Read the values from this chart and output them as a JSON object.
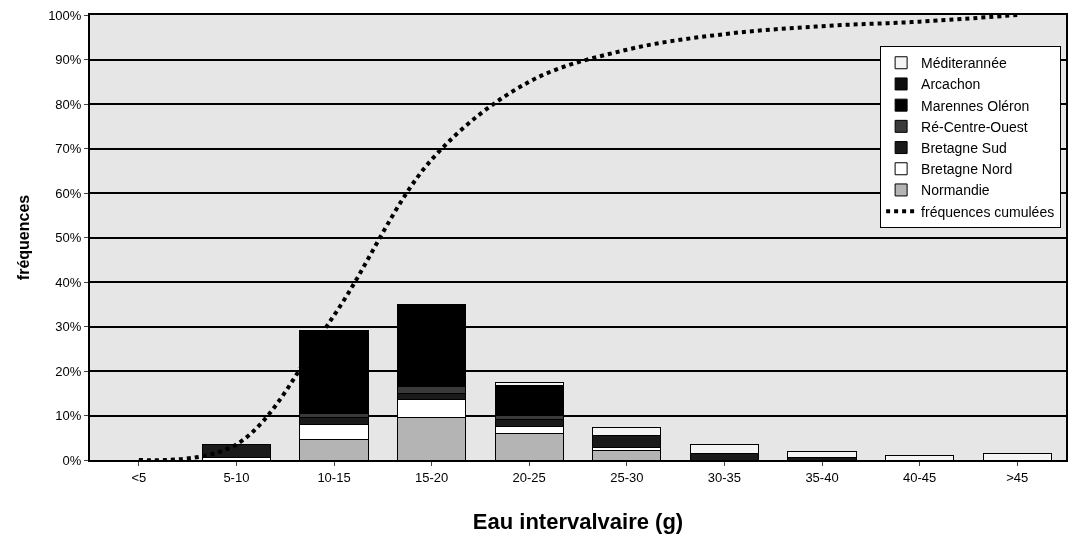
{
  "chart_data": {
    "type": "bar",
    "stacked": true,
    "xlabel": "Eau intervalvaire (g)",
    "ylabel": "fréquences",
    "categories": [
      "<5",
      "5-10",
      "10-15",
      "15-20",
      "20-25",
      "25-30",
      "30-35",
      "35-40",
      "40-45",
      ">45"
    ],
    "series": [
      {
        "name": "Normandie",
        "color": "#b4b4b4",
        "values": [
          0,
          0,
          4.5,
          9.5,
          6,
          2.2,
          0,
          0,
          0,
          0
        ]
      },
      {
        "name": "Bretagne Nord",
        "color": "#ffffff",
        "values": [
          0,
          0.5,
          3.5,
          4,
          1.5,
          0.6,
          0,
          0,
          0,
          0
        ]
      },
      {
        "name": "Bretagne Sud",
        "color": "#1a1a1a",
        "values": [
          0,
          3,
          1.5,
          1.5,
          1.5,
          2.7,
          1.5,
          0.5,
          0,
          0
        ]
      },
      {
        "name": "Ré-Centre-Ouest",
        "color": "#3a3a3a",
        "values": [
          0,
          0,
          1,
          1.5,
          1,
          0,
          0,
          0,
          0,
          0
        ]
      },
      {
        "name": "Marennes Oléron",
        "color": "#000000",
        "values": [
          0,
          0,
          18.5,
          18.5,
          6.7,
          0,
          0,
          0,
          0,
          0
        ]
      },
      {
        "name": "Arcachon",
        "color": "#0d0d0d",
        "values": [
          0,
          0,
          0,
          0,
          0,
          0,
          0,
          0,
          0,
          0
        ]
      },
      {
        "name": "Méditerannée",
        "color": "#f4f4f4",
        "values": [
          0,
          0,
          0,
          0,
          0.8,
          1.7,
          2,
          1.3,
          1,
          1.5
        ]
      },
      {
        "name": "fréquences cumulées",
        "type": "line",
        "line_style": "dotted",
        "color": "#000000",
        "values": [
          0,
          3.5,
          32.5,
          67.5,
          85,
          92.2,
          95.7,
          97.5,
          98.5,
          100
        ]
      }
    ],
    "ylim": [
      0,
      100
    ],
    "yticks": [
      {
        "value": 0,
        "label": "0%"
      },
      {
        "value": 10,
        "label": "10%"
      },
      {
        "value": 20,
        "label": "20%"
      },
      {
        "value": 30,
        "label": "30%"
      },
      {
        "value": 40,
        "label": "40%"
      },
      {
        "value": 50,
        "label": "50%"
      },
      {
        "value": 60,
        "label": "60%"
      },
      {
        "value": 70,
        "label": "70%"
      },
      {
        "value": 80,
        "label": "80%"
      },
      {
        "value": 90,
        "label": "90%"
      },
      {
        "value": 100,
        "label": "100%"
      }
    ],
    "grid": "y",
    "legend": "top right"
  }
}
